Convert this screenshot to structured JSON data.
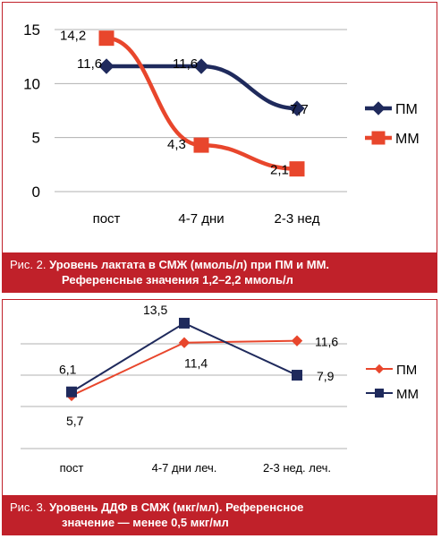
{
  "charts": [
    {
      "type": "line",
      "categories": [
        "пост",
        "4-7 дни",
        "2-3 нед"
      ],
      "y_ticks": [
        "0",
        "5",
        "10",
        "15"
      ],
      "ylim": [
        0,
        15
      ],
      "grid": true,
      "legend_position": "right",
      "series": [
        {
          "name": "ПМ",
          "values": [
            11.6,
            11.6,
            7.7
          ],
          "labels": [
            "11,6",
            "11,6",
            "7,7"
          ],
          "color": "#1f2a5c",
          "marker": "diamond"
        },
        {
          "name": "ММ",
          "values": [
            14.2,
            4.3,
            2.1
          ],
          "labels": [
            "14,2",
            "4,3",
            "2,1"
          ],
          "color": "#e8462c",
          "marker": "square"
        }
      ]
    },
    {
      "type": "line",
      "categories": [
        "пост",
        "4-7 дни леч.",
        "2-3 нед. леч."
      ],
      "grid": true,
      "legend_position": "right",
      "series": [
        {
          "name": "ПМ",
          "values": [
            5.7,
            11.4,
            11.6
          ],
          "labels": [
            "5,7",
            "11,4",
            "11,6"
          ],
          "color": "#e8462c",
          "marker": "diamond"
        },
        {
          "name": "ММ",
          "values": [
            6.1,
            13.5,
            7.9
          ],
          "labels": [
            "6,1",
            "13,5",
            "7,9"
          ],
          "color": "#1f2a5c",
          "marker": "square"
        }
      ]
    }
  ],
  "captions": [
    {
      "label": "Рис. 2.",
      "title_line1": "Уровень лактата в СМЖ (ммоль/л) при ПМ и ММ.",
      "title_line2": "Референсные значения 1,2–2,2 ммоль/л"
    },
    {
      "label": "Рис. 3.",
      "title_line1": "Уровень ДДФ в СМЖ (мкг/мл). Референсное",
      "title_line2": "значение — менее 0,5 мкг/мл"
    }
  ],
  "colors": {
    "frame": "#c0212a",
    "grid": "#b0b0b0"
  }
}
